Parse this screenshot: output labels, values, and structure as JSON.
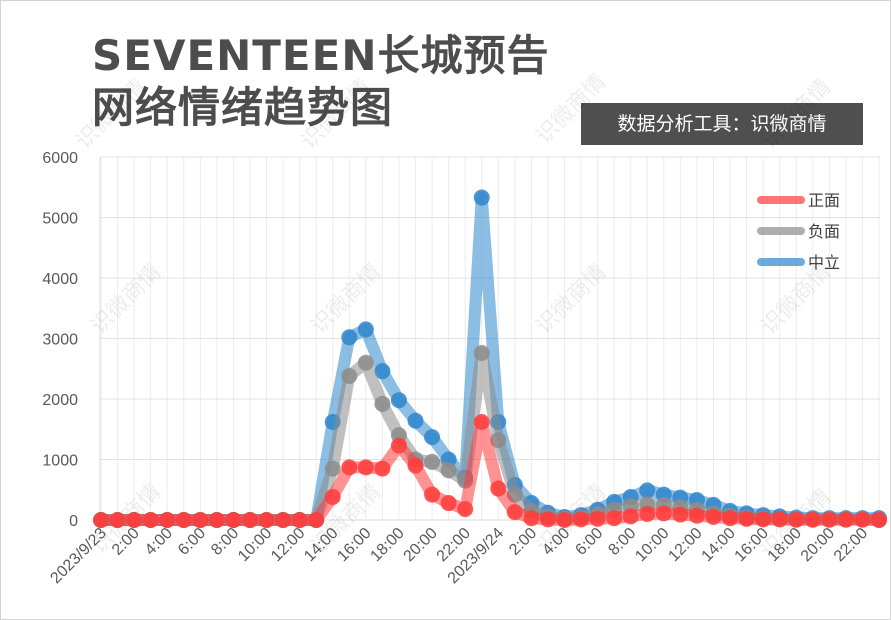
{
  "title_line1": "SEVENTEEN长城预告",
  "title_line2": "网络情绪趋势图",
  "tool_badge": "数据分析工具：识微商情",
  "watermark_text": "识微商情",
  "chart_data": {
    "type": "line",
    "title": "SEVENTEEN长城预告网络情绪趋势图",
    "xlabel": "",
    "ylabel": "",
    "ylim": [
      0,
      6000
    ],
    "yticks": [
      0,
      1000,
      2000,
      3000,
      4000,
      5000,
      6000
    ],
    "grid": true,
    "legend_position": "top-right",
    "x": [
      "2023/9/23 0:00",
      "1:00",
      "2:00",
      "3:00",
      "4:00",
      "5:00",
      "6:00",
      "7:00",
      "8:00",
      "9:00",
      "10:00",
      "11:00",
      "12:00",
      "13:00",
      "14:00",
      "15:00",
      "16:00",
      "17:00",
      "18:00",
      "19:00",
      "20:00",
      "21:00",
      "22:00",
      "23:00",
      "2023/9/24 0:00",
      "1:00",
      "2:00",
      "3:00",
      "4:00",
      "5:00",
      "6:00",
      "7:00",
      "8:00",
      "9:00",
      "10:00",
      "11:00",
      "12:00",
      "13:00",
      "14:00",
      "15:00",
      "16:00",
      "17:00",
      "18:00",
      "19:00",
      "20:00",
      "21:00",
      "22:00",
      "23:00"
    ],
    "xtick_labels": [
      "2023/9/23",
      "2:00",
      "4:00",
      "6:00",
      "8:00",
      "10:00",
      "12:00",
      "14:00",
      "16:00",
      "18:00",
      "20:00",
      "22:00",
      "2023/9/24",
      "2:00",
      "4:00",
      "6:00",
      "8:00",
      "10:00",
      "12:00",
      "14:00",
      "16:00",
      "18:00",
      "20:00",
      "22:00"
    ],
    "series": [
      {
        "name": "正面",
        "color": "#ff3b3b",
        "values": [
          0,
          0,
          0,
          0,
          0,
          0,
          0,
          0,
          0,
          0,
          0,
          0,
          0,
          0,
          380,
          870,
          870,
          850,
          1230,
          900,
          420,
          280,
          180,
          1620,
          520,
          130,
          30,
          10,
          0,
          10,
          20,
          30,
          60,
          100,
          110,
          90,
          70,
          50,
          30,
          20,
          10,
          10,
          5,
          5,
          5,
          5,
          5,
          0
        ]
      },
      {
        "name": "负面",
        "color": "#8c8c8c",
        "values": [
          0,
          0,
          0,
          0,
          0,
          0,
          0,
          0,
          0,
          0,
          0,
          0,
          0,
          0,
          850,
          2380,
          2600,
          1920,
          1400,
          1000,
          960,
          820,
          650,
          2760,
          1320,
          420,
          150,
          60,
          20,
          40,
          100,
          170,
          230,
          260,
          250,
          210,
          170,
          110,
          70,
          40,
          25,
          15,
          10,
          10,
          10,
          10,
          10,
          0
        ]
      },
      {
        "name": "中立",
        "color": "#2e86cc",
        "values": [
          0,
          0,
          0,
          0,
          0,
          0,
          0,
          0,
          0,
          0,
          0,
          0,
          0,
          0,
          1620,
          3020,
          3150,
          2460,
          1980,
          1640,
          1370,
          1000,
          700,
          5330,
          1620,
          580,
          280,
          120,
          50,
          80,
          170,
          300,
          380,
          490,
          420,
          370,
          330,
          250,
          150,
          110,
          80,
          60,
          40,
          30,
          30,
          30,
          30,
          30
        ]
      }
    ]
  }
}
